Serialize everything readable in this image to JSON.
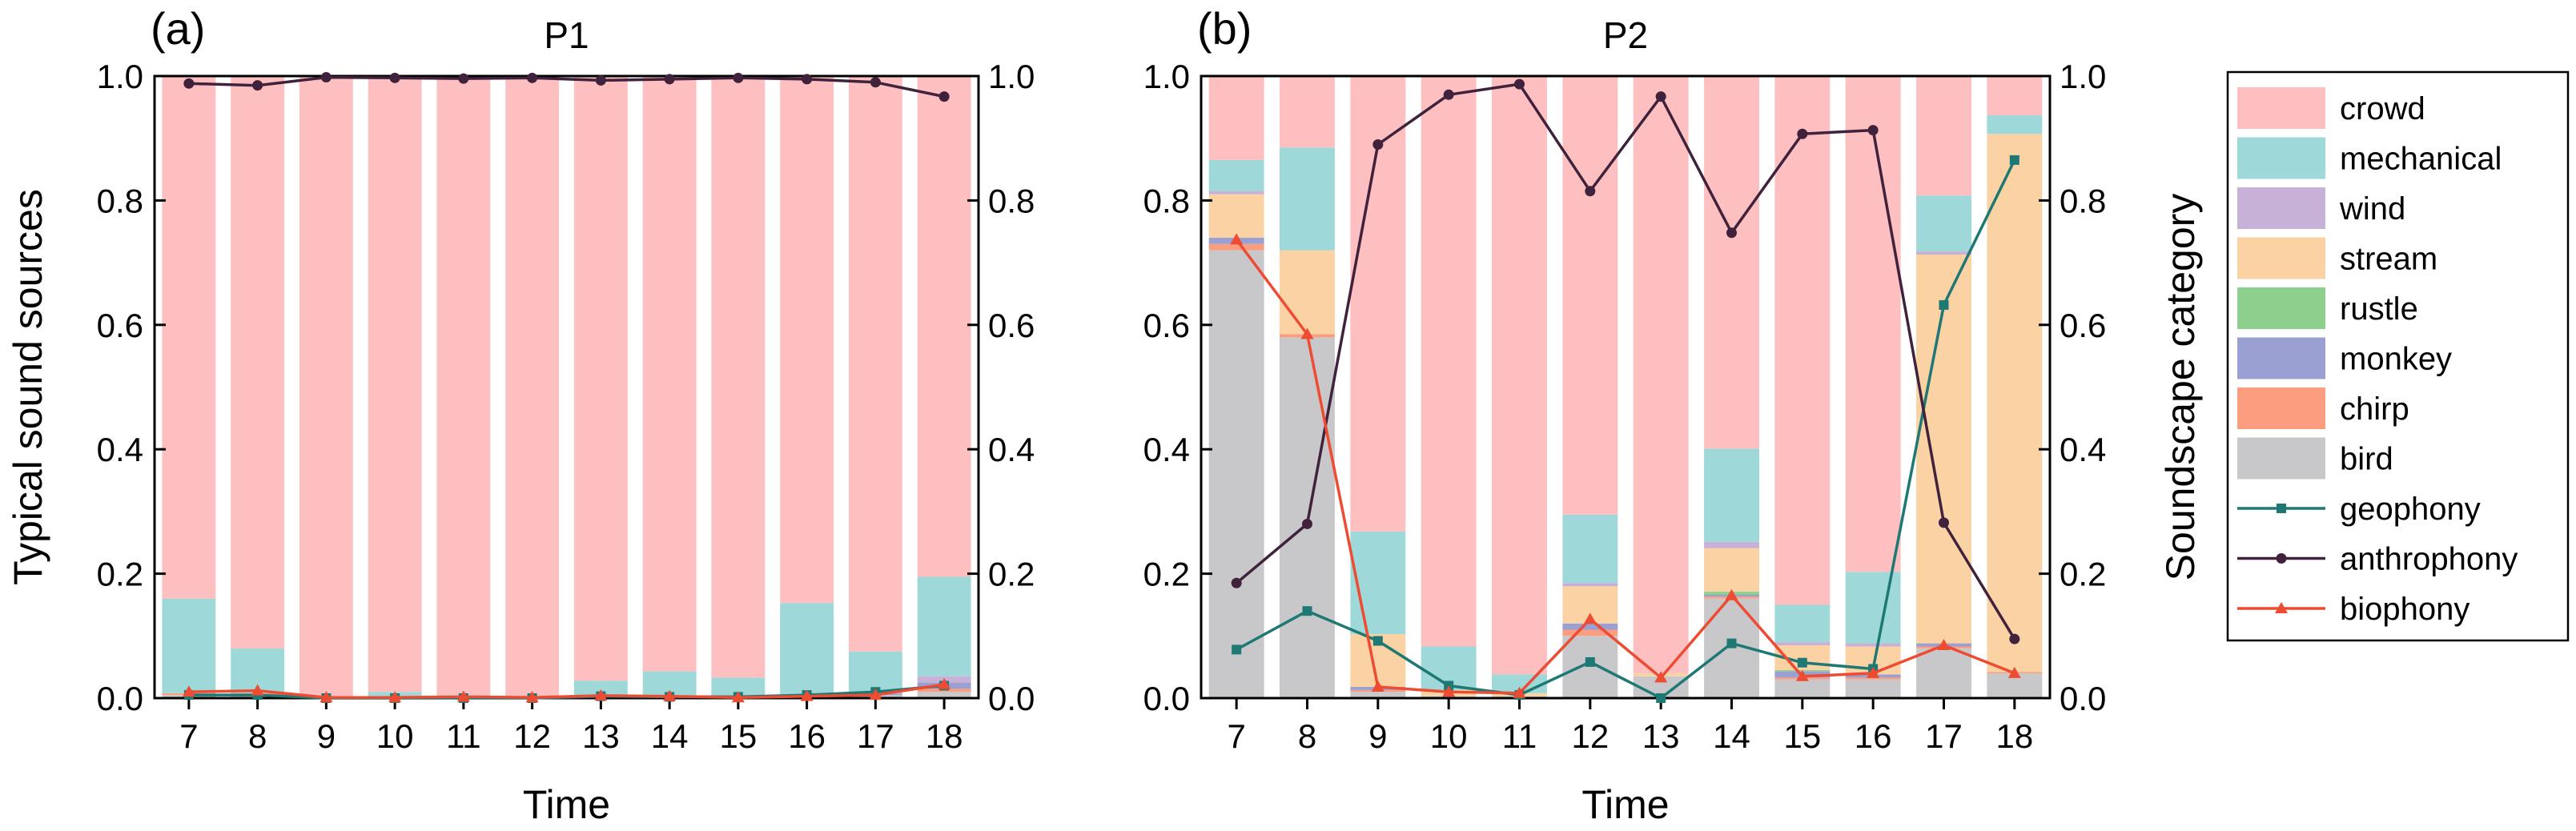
{
  "colors": {
    "crowd": "#fdbfbf",
    "mechanical": "#9ed8d8",
    "wind": "#c8b1d6",
    "stream": "#fbd2a3",
    "rustle": "#8dd08e",
    "monkey": "#9aa0d2",
    "chirp": "#fb9d7f",
    "bird": "#c8c8cb",
    "geophony": "#1e7874",
    "anthrophony": "#40223c",
    "biophony": "#ee4b33"
  },
  "legend": {
    "items": [
      {
        "key": "crowd",
        "label": "crowd",
        "kind": "box"
      },
      {
        "key": "mechanical",
        "label": "mechanical",
        "kind": "box"
      },
      {
        "key": "wind",
        "label": "wind",
        "kind": "box"
      },
      {
        "key": "stream",
        "label": "stream",
        "kind": "box"
      },
      {
        "key": "rustle",
        "label": "rustle",
        "kind": "box"
      },
      {
        "key": "monkey",
        "label": "monkey",
        "kind": "box"
      },
      {
        "key": "chirp",
        "label": "chirp",
        "kind": "box"
      },
      {
        "key": "bird",
        "label": "bird",
        "kind": "box"
      },
      {
        "key": "geophony",
        "label": "geophony",
        "kind": "line",
        "marker": "square"
      },
      {
        "key": "anthrophony",
        "label": "anthrophony",
        "kind": "line",
        "marker": "circle"
      },
      {
        "key": "biophony",
        "label": "biophony",
        "kind": "line",
        "marker": "triangle"
      }
    ]
  },
  "chart_data": [
    {
      "type": "bar",
      "stacked": true,
      "panel_label": "(a)",
      "title": "P1",
      "xlabel": "Time",
      "ylabel_left": "Typical sound sources",
      "ylabel_right": "",
      "ylim": [
        0,
        1.0
      ],
      "yticks": [
        "0.0",
        "0.2",
        "0.4",
        "0.6",
        "0.8",
        "1.0"
      ],
      "categories": [
        "7",
        "8",
        "9",
        "10",
        "11",
        "12",
        "13",
        "14",
        "15",
        "16",
        "17",
        "18"
      ],
      "stack_order": [
        "bird",
        "chirp",
        "monkey",
        "rustle",
        "stream",
        "wind",
        "mechanical",
        "crowd"
      ],
      "bars": {
        "bird": [
          0.005,
          0.005,
          0.0,
          0.0,
          0.0,
          0.0,
          0.003,
          0.003,
          0.0,
          0.003,
          0.005,
          0.01
        ],
        "chirp": [
          0.003,
          0.003,
          0.0,
          0.0,
          0.0,
          0.0,
          0.0,
          0.0,
          0.0,
          0.0,
          0.0,
          0.005
        ],
        "monkey": [
          0.0,
          0.0,
          0.0,
          0.0,
          0.0,
          0.0,
          0.0,
          0.0,
          0.0,
          0.0,
          0.002,
          0.01
        ],
        "rustle": [
          0.0,
          0.0,
          0.0,
          0.0,
          0.0,
          0.0,
          0.0,
          0.0,
          0.0,
          0.0,
          0.0,
          0.0
        ],
        "stream": [
          0.0,
          0.0,
          0.0,
          0.0,
          0.0,
          0.0,
          0.0,
          0.0,
          0.0,
          0.0,
          0.0,
          0.0
        ],
        "wind": [
          0.0,
          0.0,
          0.0,
          0.0,
          0.0,
          0.0,
          0.0,
          0.0,
          0.0,
          0.0,
          0.003,
          0.01
        ],
        "mechanical": [
          0.152,
          0.072,
          0.003,
          0.01,
          0.005,
          0.003,
          0.025,
          0.04,
          0.033,
          0.15,
          0.065,
          0.16
        ],
        "crowd": [
          0.84,
          0.92,
          0.997,
          0.99,
          0.995,
          0.997,
          0.972,
          0.957,
          0.967,
          0.847,
          0.925,
          0.805
        ]
      },
      "series": [
        {
          "name": "geophony",
          "marker": "square",
          "values": [
            0.005,
            0.005,
            0.0,
            0.0,
            0.0,
            0.0,
            0.003,
            0.002,
            0.002,
            0.005,
            0.01,
            0.02
          ]
        },
        {
          "name": "anthrophony",
          "marker": "circle",
          "values": [
            0.988,
            0.985,
            0.998,
            0.997,
            0.996,
            0.997,
            0.993,
            0.995,
            0.997,
            0.995,
            0.99,
            0.967
          ]
        },
        {
          "name": "biophony",
          "marker": "triangle",
          "values": [
            0.01,
            0.012,
            0.001,
            0.001,
            0.002,
            0.001,
            0.004,
            0.003,
            0.001,
            0.003,
            0.005,
            0.022
          ]
        }
      ]
    },
    {
      "type": "bar",
      "stacked": true,
      "panel_label": "(b)",
      "title": "P2",
      "xlabel": "Time",
      "ylabel_left": "",
      "ylabel_right": "Soundscape category",
      "ylim": [
        0,
        1.0
      ],
      "yticks": [
        "0.0",
        "0.2",
        "0.4",
        "0.6",
        "0.8",
        "1.0"
      ],
      "categories": [
        "7",
        "8",
        "9",
        "10",
        "11",
        "12",
        "13",
        "14",
        "15",
        "16",
        "17",
        "18"
      ],
      "stack_order": [
        "bird",
        "chirp",
        "monkey",
        "rustle",
        "stream",
        "wind",
        "mechanical",
        "crowd"
      ],
      "bars": {
        "bird": [
          0.72,
          0.58,
          0.01,
          0.003,
          0.003,
          0.1,
          0.035,
          0.16,
          0.03,
          0.03,
          0.08,
          0.04
        ],
        "chirp": [
          0.01,
          0.005,
          0.003,
          0.0,
          0.0,
          0.01,
          0.0,
          0.003,
          0.003,
          0.003,
          0.003,
          0.002
        ],
        "monkey": [
          0.01,
          0.0,
          0.005,
          0.0,
          0.0,
          0.01,
          0.0,
          0.003,
          0.01,
          0.005,
          0.005,
          0.0
        ],
        "rustle": [
          0.0,
          0.0,
          0.0,
          0.0,
          0.0,
          0.0,
          0.0,
          0.005,
          0.002,
          0.0,
          0.0,
          0.0
        ],
        "stream": [
          0.07,
          0.135,
          0.085,
          0.01,
          0.005,
          0.06,
          0.005,
          0.07,
          0.04,
          0.045,
          0.625,
          0.865
        ],
        "wind": [
          0.005,
          0.0,
          0.0,
          0.0,
          0.0,
          0.005,
          0.0,
          0.01,
          0.005,
          0.005,
          0.005,
          0.0
        ],
        "mechanical": [
          0.05,
          0.165,
          0.165,
          0.07,
          0.03,
          0.11,
          0.0,
          0.15,
          0.06,
          0.115,
          0.09,
          0.03
        ],
        "crowd": [
          0.135,
          0.115,
          0.732,
          0.917,
          0.962,
          0.705,
          0.96,
          0.599,
          0.85,
          0.797,
          0.192,
          0.063
        ]
      },
      "series": [
        {
          "name": "geophony",
          "marker": "square",
          "values": [
            0.078,
            0.14,
            0.092,
            0.02,
            0.005,
            0.058,
            0.0,
            0.088,
            0.057,
            0.047,
            0.632,
            0.865
          ]
        },
        {
          "name": "anthrophony",
          "marker": "circle",
          "values": [
            0.185,
            0.28,
            0.89,
            0.97,
            0.987,
            0.815,
            0.967,
            0.748,
            0.907,
            0.913,
            0.282,
            0.095
          ]
        },
        {
          "name": "biophony",
          "marker": "triangle",
          "values": [
            0.737,
            0.585,
            0.018,
            0.01,
            0.008,
            0.127,
            0.033,
            0.165,
            0.035,
            0.04,
            0.085,
            0.04
          ]
        }
      ]
    }
  ]
}
